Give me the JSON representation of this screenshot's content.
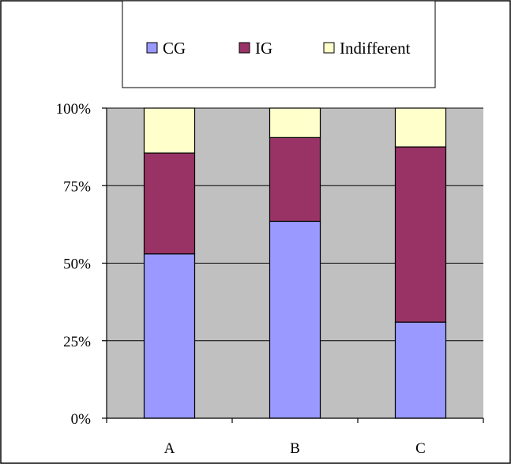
{
  "chart_data": {
    "type": "bar",
    "stacked": true,
    "percent": true,
    "categories": [
      "A",
      "B",
      "C"
    ],
    "series": [
      {
        "name": "CG",
        "values": [
          53,
          63.5,
          31
        ],
        "color": "#9999ff"
      },
      {
        "name": "IG",
        "values": [
          32.5,
          27,
          56.5
        ],
        "color": "#993366"
      },
      {
        "name": "Indifferent",
        "values": [
          14.5,
          9.5,
          12.5
        ],
        "color": "#ffffcc"
      }
    ],
    "yticks": [
      "0%",
      "25%",
      "50%",
      "75%",
      "100%"
    ],
    "ylim": [
      0,
      100
    ],
    "grid": true,
    "plot_background": "#c0c0c0",
    "legend_position": "top",
    "title": "",
    "xlabel": "",
    "ylabel": ""
  }
}
